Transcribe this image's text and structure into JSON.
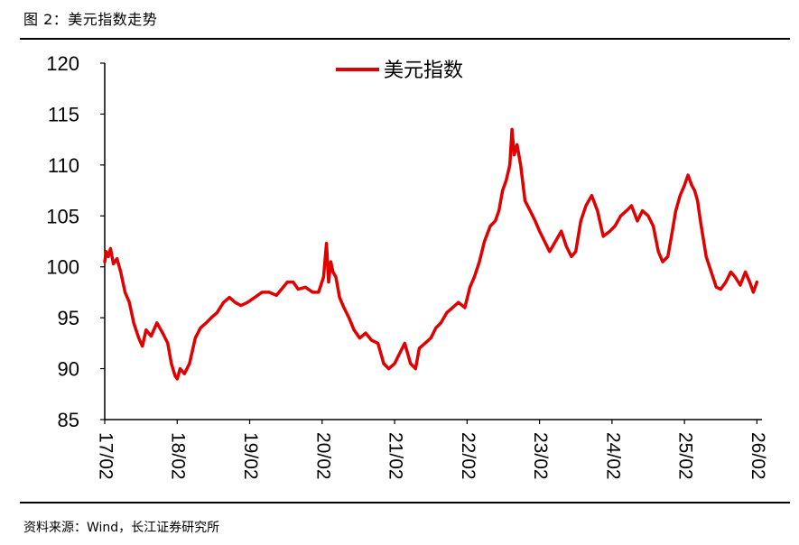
{
  "header": {
    "figure_title": "图 2：美元指数走势"
  },
  "footer": {
    "source": "资料来源：Wind，长江证券研究所"
  },
  "colors": {
    "series": "#e00000",
    "axis": "#000000"
  },
  "chart_data": {
    "type": "line",
    "title": "",
    "xlabel": "",
    "ylabel": "",
    "ylim": [
      85,
      120
    ],
    "yticks": [
      85,
      90,
      95,
      100,
      105,
      110,
      115,
      120
    ],
    "xlim": [
      2017.08,
      2026.1
    ],
    "xtick_labels": [
      "17/02",
      "18/02",
      "19/02",
      "20/02",
      "21/02",
      "22/02",
      "23/02",
      "24/02",
      "25/02",
      "26/02"
    ],
    "xtick_positions": [
      2017.08,
      2018.08,
      2019.08,
      2020.08,
      2021.08,
      2022.08,
      2023.08,
      2024.08,
      2025.08,
      2026.08
    ],
    "legend": {
      "placement": "top-center"
    },
    "grid": false,
    "series": [
      {
        "name": "美元指数",
        "color": "#e00000",
        "x": [
          2017.08,
          2017.1,
          2017.13,
          2017.16,
          2017.2,
          2017.25,
          2017.3,
          2017.36,
          2017.42,
          2017.48,
          2017.55,
          2017.6,
          2017.65,
          2017.72,
          2017.8,
          2017.88,
          2017.95,
          2018.0,
          2018.05,
          2018.08,
          2018.12,
          2018.18,
          2018.25,
          2018.33,
          2018.4,
          2018.48,
          2018.55,
          2018.63,
          2018.72,
          2018.8,
          2018.88,
          2018.96,
          2019.05,
          2019.15,
          2019.25,
          2019.35,
          2019.45,
          2019.52,
          2019.6,
          2019.68,
          2019.75,
          2019.85,
          2019.95,
          2020.03,
          2020.1,
          2020.14,
          2020.17,
          2020.2,
          2020.23,
          2020.27,
          2020.32,
          2020.38,
          2020.45,
          2020.52,
          2020.6,
          2020.68,
          2020.76,
          2020.85,
          2020.93,
          2021.0,
          2021.08,
          2021.15,
          2021.22,
          2021.3,
          2021.37,
          2021.42,
          2021.5,
          2021.58,
          2021.65,
          2021.72,
          2021.8,
          2021.88,
          2021.96,
          2022.05,
          2022.12,
          2022.18,
          2022.25,
          2022.32,
          2022.4,
          2022.47,
          2022.52,
          2022.57,
          2022.62,
          2022.67,
          2022.7,
          2022.73,
          2022.77,
          2022.82,
          2022.88,
          2022.95,
          2023.02,
          2023.08,
          2023.15,
          2023.22,
          2023.3,
          2023.38,
          2023.45,
          2023.52,
          2023.58,
          2023.65,
          2023.72,
          2023.8,
          2023.88,
          2023.96,
          2024.05,
          2024.12,
          2024.2,
          2024.28,
          2024.35,
          2024.43,
          2024.5,
          2024.58,
          2024.65,
          2024.72,
          2024.78,
          2024.85,
          2024.9,
          2024.96,
          2025.02,
          2025.08,
          2025.13,
          2025.18,
          2025.22,
          2025.26,
          2025.3,
          2025.38,
          2025.45,
          2025.52,
          2025.58,
          2025.65,
          2025.72,
          2025.78,
          2025.85,
          2025.92,
          2025.98,
          2026.03,
          2026.08
        ],
        "y": [
          100.5,
          101.5,
          101.0,
          101.8,
          100.3,
          100.8,
          99.5,
          97.5,
          96.5,
          94.5,
          93.0,
          92.2,
          93.8,
          93.2,
          94.5,
          93.5,
          92.5,
          90.5,
          89.3,
          89.0,
          90.0,
          89.5,
          90.5,
          93.0,
          94.0,
          94.5,
          95.0,
          95.5,
          96.5,
          97.0,
          96.5,
          96.2,
          96.5,
          97.0,
          97.5,
          97.5,
          97.2,
          97.8,
          98.5,
          98.5,
          97.8,
          98.0,
          97.5,
          97.5,
          99.0,
          102.3,
          98.5,
          100.5,
          99.5,
          99.0,
          97.0,
          96.0,
          95.0,
          93.8,
          93.0,
          93.5,
          92.8,
          92.5,
          90.5,
          90.0,
          90.5,
          91.5,
          92.5,
          90.5,
          90.0,
          92.0,
          92.5,
          93.0,
          94.0,
          94.5,
          95.5,
          96.0,
          96.5,
          96.0,
          98.0,
          99.0,
          100.5,
          102.5,
          104.0,
          104.5,
          105.5,
          107.5,
          108.5,
          110.0,
          113.5,
          111.0,
          112.0,
          110.0,
          106.5,
          105.5,
          104.5,
          103.5,
          102.5,
          101.5,
          102.5,
          103.5,
          102.0,
          101.0,
          101.5,
          104.5,
          106.0,
          107.0,
          105.5,
          103.0,
          103.5,
          104.0,
          105.0,
          105.5,
          106.0,
          104.5,
          105.5,
          105.0,
          104.0,
          101.5,
          100.5,
          101.0,
          103.0,
          105.5,
          107.0,
          108.0,
          109.0,
          108.0,
          107.5,
          106.5,
          104.5,
          101.0,
          99.5,
          98.0,
          97.8,
          98.5,
          99.5,
          99.0,
          98.2,
          99.5,
          98.5,
          97.5,
          98.5
        ]
      }
    ]
  }
}
